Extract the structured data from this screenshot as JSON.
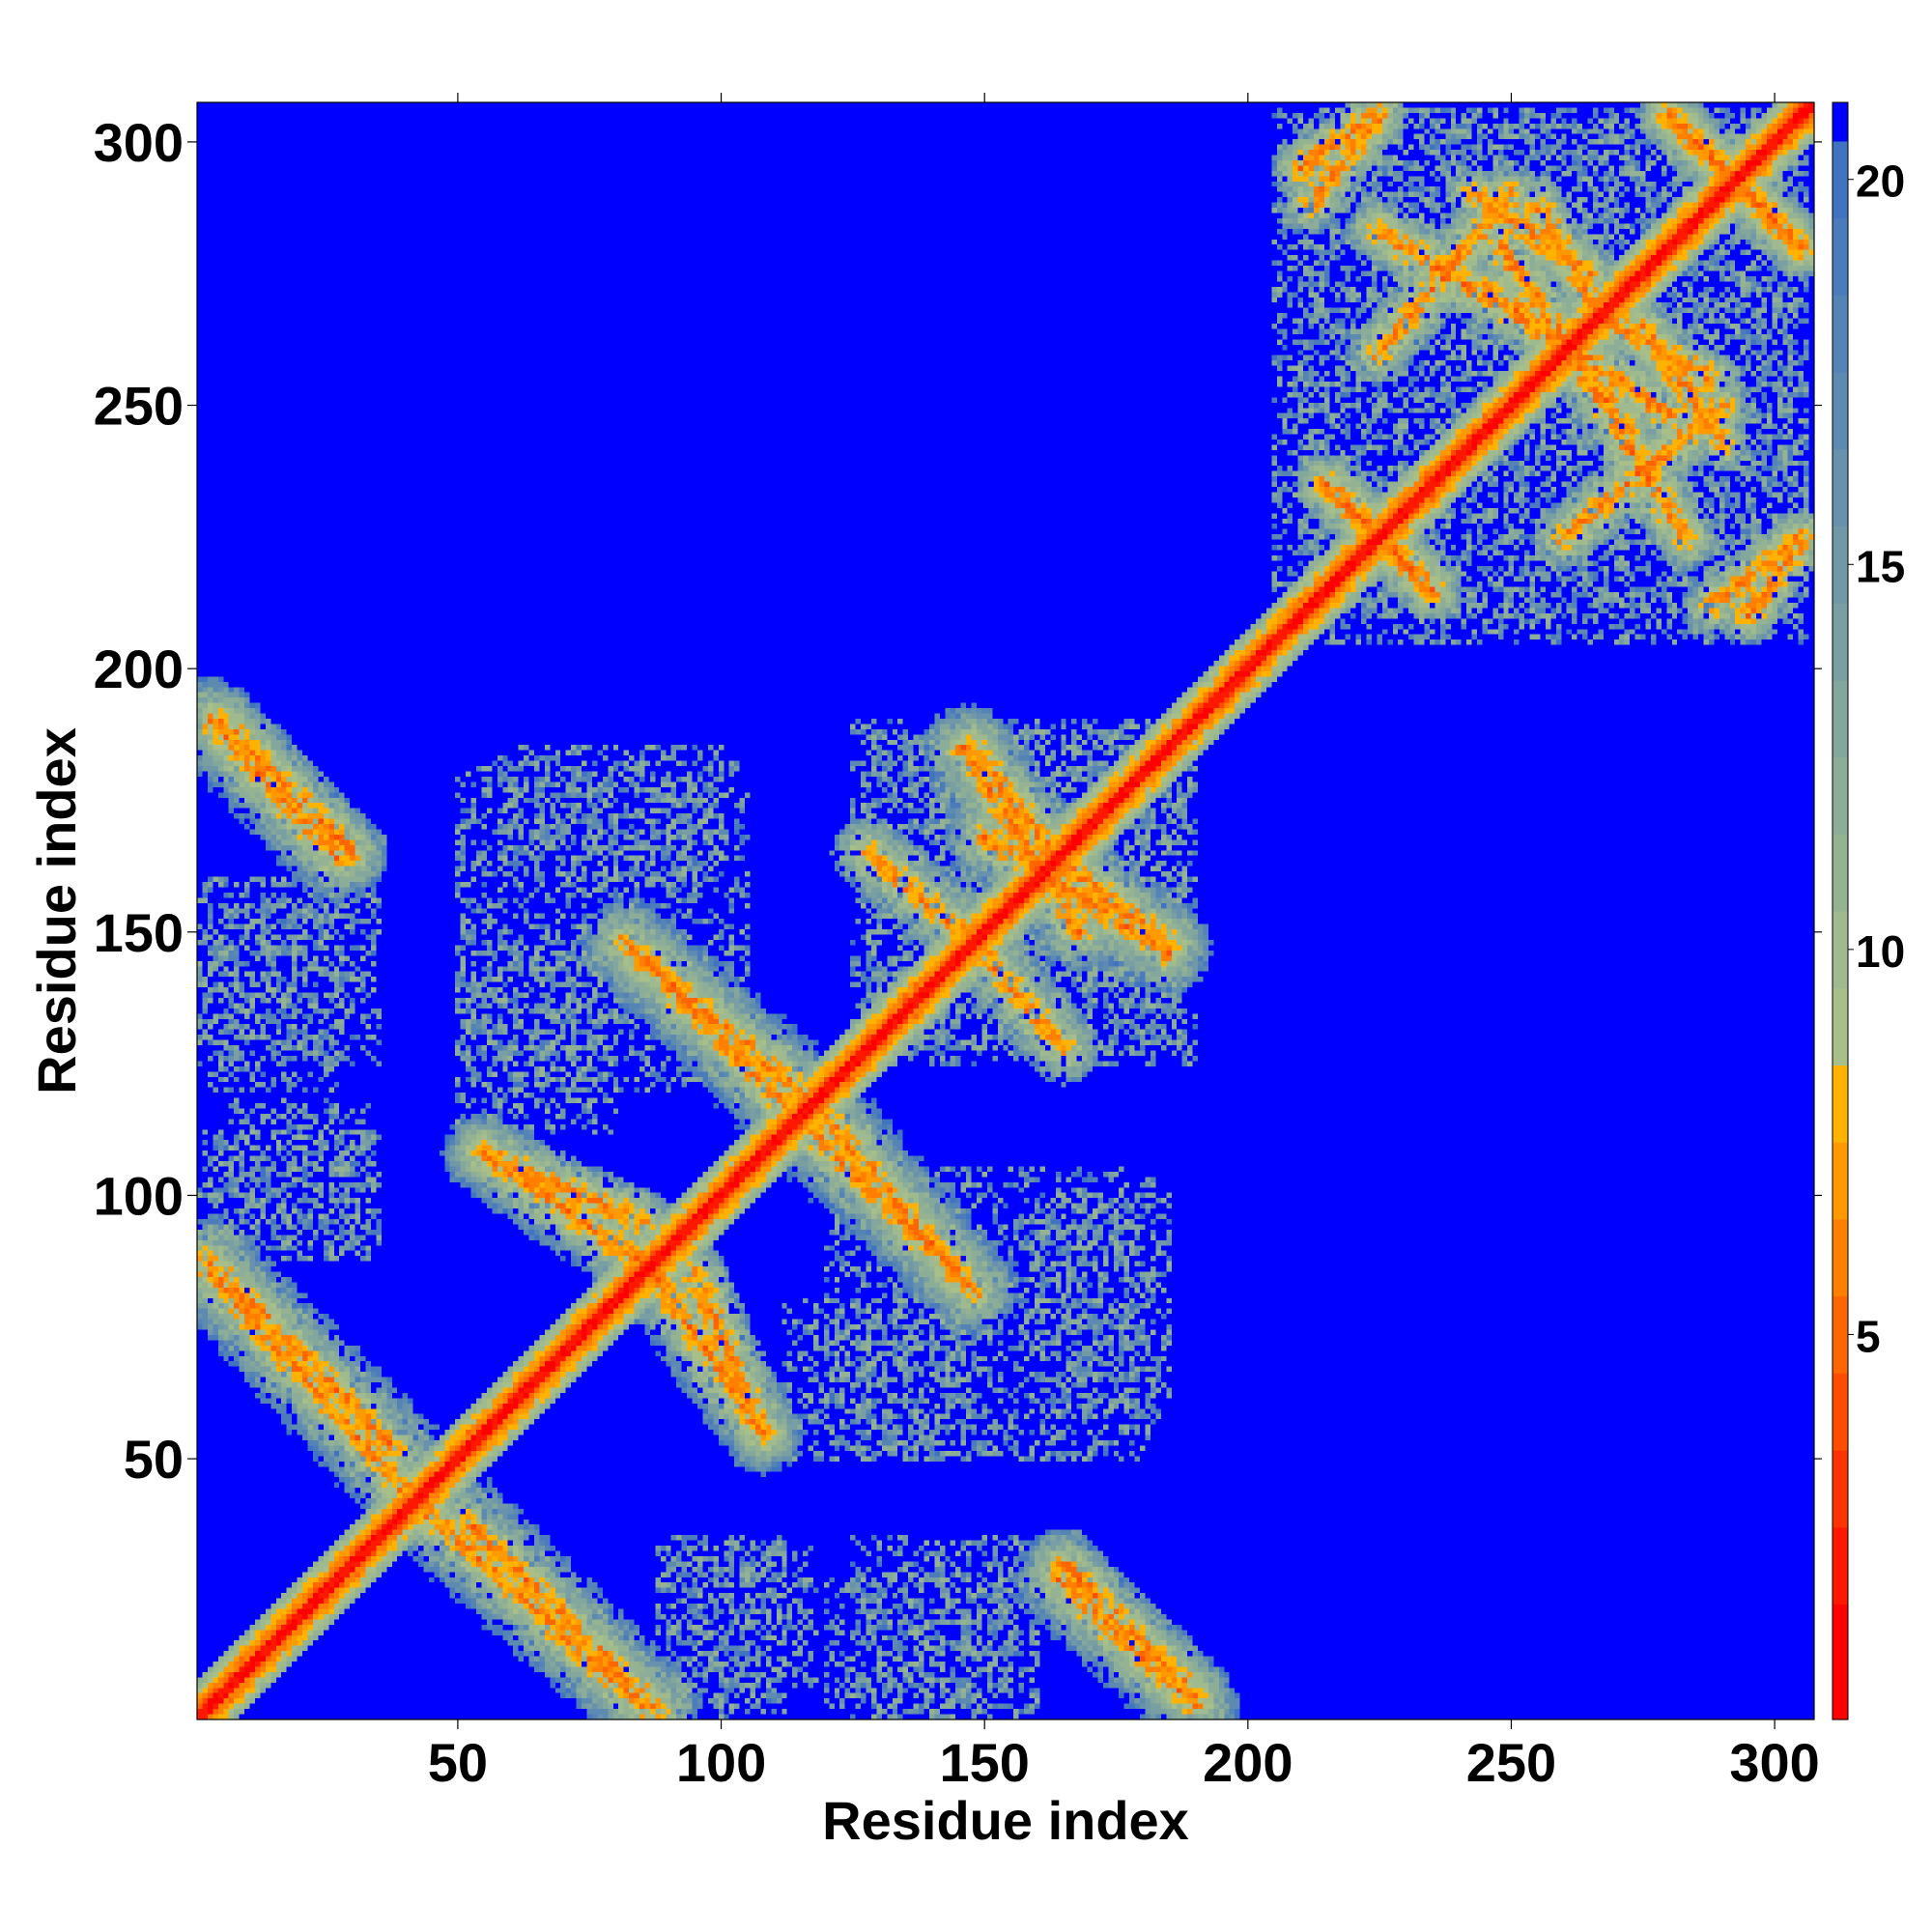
{
  "chart_data": {
    "type": "heatmap",
    "title": "",
    "xlabel": "Residue index",
    "ylabel": "Residue index",
    "n_residues": 307,
    "xlim": [
      1,
      307
    ],
    "ylim": [
      1,
      307
    ],
    "x_ticks": [
      50,
      100,
      150,
      200,
      250,
      300
    ],
    "y_ticks": [
      50,
      100,
      150,
      200,
      250,
      300
    ],
    "x_tick_labels": [
      "50",
      "100",
      "150",
      "200",
      "250",
      "300"
    ],
    "y_tick_labels": [
      "50",
      "100",
      "150",
      "200",
      "250",
      "300"
    ],
    "colorbar": {
      "range": [
        0,
        21
      ],
      "ticks": [
        5,
        10,
        15,
        20
      ],
      "tick_labels": [
        "5",
        "10",
        "15",
        "20"
      ],
      "levels": [
        {
          "max": 1.5,
          "color": "#ff0000"
        },
        {
          "max": 2.5,
          "color": "#ff1800"
        },
        {
          "max": 3.5,
          "color": "#ff3300"
        },
        {
          "max": 4.5,
          "color": "#ff4d00"
        },
        {
          "max": 5.5,
          "color": "#ff6600"
        },
        {
          "max": 6.5,
          "color": "#ff8000"
        },
        {
          "max": 7.5,
          "color": "#ff9900"
        },
        {
          "max": 8.5,
          "color": "#ffb300"
        },
        {
          "max": 9.5,
          "color": "#a9bf8a"
        },
        {
          "max": 10.5,
          "color": "#9fba8f"
        },
        {
          "max": 11.5,
          "color": "#95b393"
        },
        {
          "max": 12.5,
          "color": "#8cad98"
        },
        {
          "max": 13.5,
          "color": "#83a69d"
        },
        {
          "max": 14.5,
          "color": "#799fa2"
        },
        {
          "max": 15.5,
          "color": "#7098a7"
        },
        {
          "max": 16.5,
          "color": "#6791ac"
        },
        {
          "max": 17.5,
          "color": "#5d8ab1"
        },
        {
          "max": 18.5,
          "color": "#5483b6"
        },
        {
          "max": 19.5,
          "color": "#4b7bbb"
        },
        {
          "max": 20.5,
          "color": "#4174c0"
        },
        {
          "max": 999,
          "color": "#0000ff"
        }
      ]
    },
    "background_color": "#0000ff",
    "diagonal": {
      "from": 1,
      "to": 307
    },
    "contact_bands": [
      {
        "x1": 5,
        "y1": 190,
        "x2": 30,
        "y2": 165,
        "width": 7,
        "core": 4.5
      },
      {
        "x1": 2,
        "y1": 88,
        "x2": 38,
        "y2": 52,
        "width": 9,
        "core": 5
      },
      {
        "x1": 44,
        "y1": 40,
        "x2": 85,
        "y2": 3,
        "width": 9,
        "core": 5
      },
      {
        "x1": 55,
        "y1": 108,
        "x2": 85,
        "y2": 95,
        "width": 6,
        "core": 4
      },
      {
        "x1": 85,
        "y1": 88,
        "x2": 108,
        "y2": 55,
        "width": 8,
        "core": 4.5
      },
      {
        "x1": 85,
        "y1": 145,
        "x2": 117,
        "y2": 118,
        "width": 10,
        "core": 5
      },
      {
        "x1": 117,
        "y1": 112,
        "x2": 148,
        "y2": 82,
        "width": 10,
        "core": 5
      },
      {
        "x1": 146,
        "y1": 185,
        "x2": 168,
        "y2": 150,
        "width": 8,
        "core": 4.5
      },
      {
        "x1": 162,
        "y1": 165,
        "x2": 185,
        "y2": 148,
        "width": 8,
        "core": 4.5
      },
      {
        "x1": 148,
        "y1": 148,
        "x2": 165,
        "y2": 128,
        "width": 7,
        "core": 4.5
      },
      {
        "x1": 164,
        "y1": 27,
        "x2": 190,
        "y2": 3,
        "width": 9,
        "core": 5
      },
      {
        "x1": 210,
        "y1": 295,
        "x2": 224,
        "y2": 305,
        "width": 5,
        "core": 3.5
      },
      {
        "x1": 225,
        "y1": 283,
        "x2": 262,
        "y2": 260,
        "width": 6,
        "core": 4
      },
      {
        "x1": 243,
        "y1": 290,
        "x2": 265,
        "y2": 275,
        "width": 5,
        "core": 3.5
      },
      {
        "x1": 215,
        "y1": 235,
        "x2": 235,
        "y2": 215,
        "width": 6,
        "core": 4
      },
      {
        "x1": 245,
        "y1": 272,
        "x2": 280,
        "y2": 248,
        "width": 6,
        "core": 4
      },
      {
        "x1": 260,
        "y1": 225,
        "x2": 290,
        "y2": 250,
        "width": 6,
        "core": 4
      },
      {
        "x1": 280,
        "y1": 305,
        "x2": 305,
        "y2": 280,
        "width": 6,
        "core": 4
      },
      {
        "x1": 288,
        "y1": 212,
        "x2": 305,
        "y2": 225,
        "width": 5,
        "core": 3.5
      },
      {
        "x1": 265,
        "y1": 268,
        "x2": 288,
        "y2": 255,
        "width": 5,
        "core": 3.5
      }
    ],
    "noise_patches": [
      {
        "x1": 1,
        "x2": 35,
        "y1": 125,
        "y2": 160
      },
      {
        "x1": 1,
        "x2": 35,
        "y1": 90,
        "y2": 112
      },
      {
        "x1": 58,
        "x2": 100,
        "y1": 160,
        "y2": 185
      },
      {
        "x1": 50,
        "x2": 80,
        "y1": 112,
        "y2": 150
      },
      {
        "x1": 88,
        "x2": 118,
        "y1": 5,
        "y2": 33
      },
      {
        "x1": 120,
        "x2": 155,
        "y1": 3,
        "y2": 28
      },
      {
        "x1": 120,
        "x2": 182,
        "y1": 50,
        "y2": 105
      },
      {
        "x1": 210,
        "x2": 306,
        "y1": 205,
        "y2": 306
      },
      {
        "x1": 128,
        "x2": 190,
        "y1": 125,
        "y2": 188
      }
    ]
  }
}
